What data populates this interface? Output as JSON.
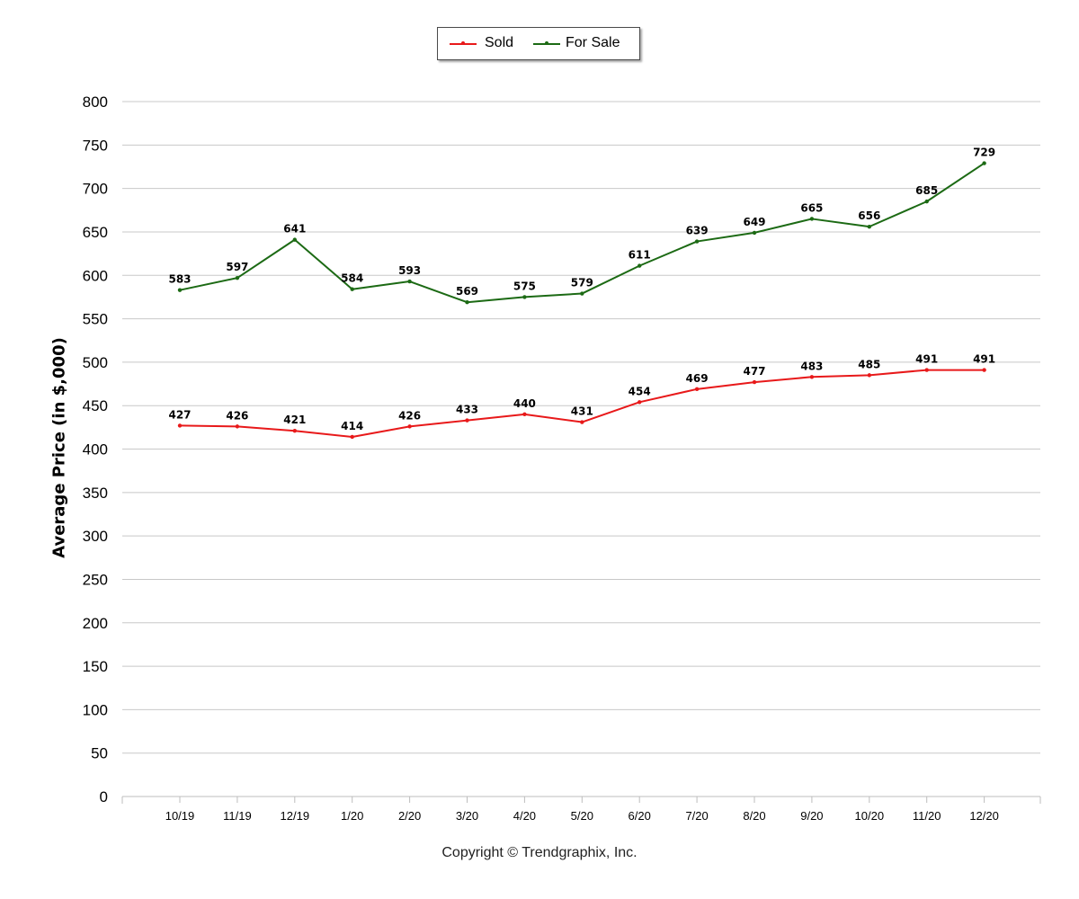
{
  "chart_data": {
    "type": "line",
    "categories": [
      "10/19",
      "11/19",
      "12/19",
      "1/20",
      "2/20",
      "3/20",
      "4/20",
      "5/20",
      "6/20",
      "7/20",
      "8/20",
      "9/20",
      "10/20",
      "11/20",
      "12/20"
    ],
    "series": [
      {
        "name": "Sold",
        "color": "#e8191a",
        "values": [
          427,
          426,
          421,
          414,
          426,
          433,
          440,
          431,
          454,
          469,
          477,
          483,
          485,
          491,
          491
        ]
      },
      {
        "name": "For Sale",
        "color": "#1c6a14",
        "values": [
          583,
          597,
          641,
          584,
          593,
          569,
          575,
          579,
          611,
          639,
          649,
          665,
          656,
          685,
          729
        ]
      }
    ],
    "ylabel": "Average Price (in $,000)",
    "xlabel": "",
    "ylim": [
      0,
      800
    ],
    "yticks": [
      0,
      50,
      100,
      150,
      200,
      250,
      300,
      350,
      400,
      450,
      500,
      550,
      600,
      650,
      700,
      750,
      800
    ],
    "grid": true,
    "legend_position": "top-center",
    "data_labels": true
  },
  "footer": {
    "copyright": "Copyright © Trendgraphix, Inc."
  }
}
